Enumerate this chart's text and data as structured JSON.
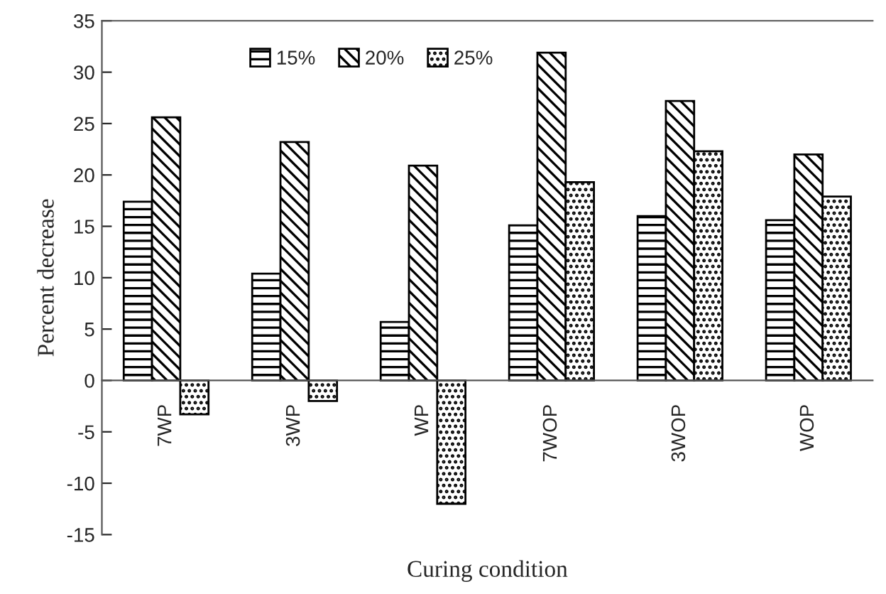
{
  "chart_data": {
    "type": "bar",
    "xlabel": "Curing condition",
    "ylabel": "Percent decrease",
    "categories": [
      "7WP",
      "3WP",
      "WP",
      "7WOP",
      "3WOP",
      "WOP"
    ],
    "series": [
      {
        "name": "15%",
        "color": "#000000",
        "values": [
          17.4,
          10.4,
          5.7,
          15.1,
          16.0,
          15.6
        ]
      },
      {
        "name": "20%",
        "color": "#000000",
        "values": [
          25.6,
          23.2,
          20.9,
          31.9,
          27.2,
          22.0
        ]
      },
      {
        "name": "25%",
        "color": "#000000",
        "values": [
          -3.3,
          -2.0,
          -12.0,
          19.3,
          22.3,
          17.9
        ]
      }
    ],
    "ylim": [
      -15,
      35
    ],
    "yticks": [
      -15,
      -10,
      -5,
      0,
      5,
      10,
      15,
      20,
      25,
      30,
      35
    ],
    "grid": false,
    "legend": "top"
  }
}
